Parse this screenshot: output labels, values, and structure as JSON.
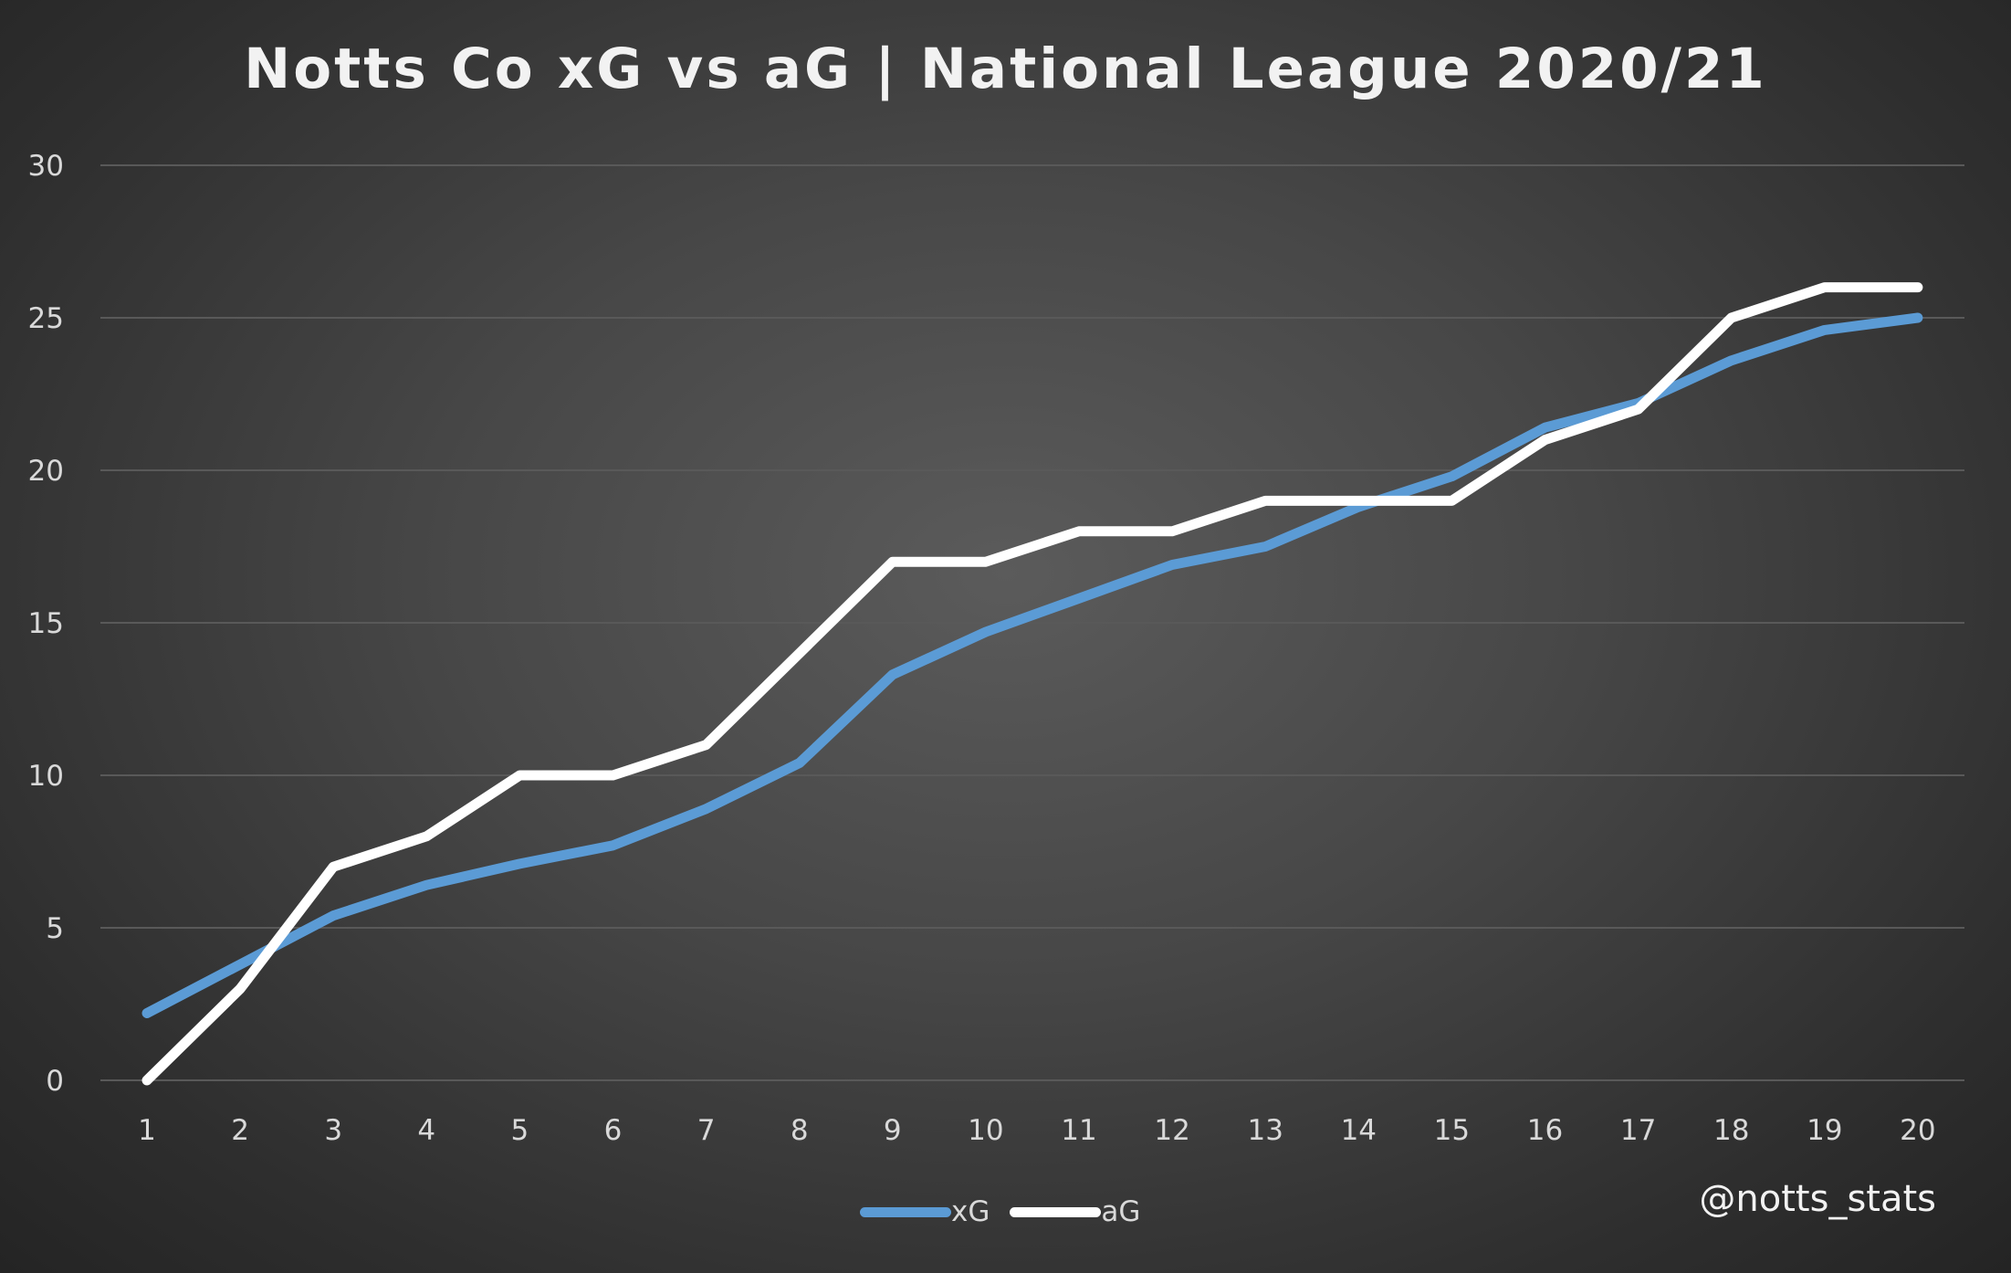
{
  "chart_data": {
    "type": "line",
    "title": "Notts Co xG vs aG | National League 2020/21",
    "xlabel": "",
    "ylabel": "",
    "x": [
      1,
      2,
      3,
      4,
      5,
      6,
      7,
      8,
      9,
      10,
      11,
      12,
      13,
      14,
      15,
      16,
      17,
      18,
      19,
      20
    ],
    "x_tick_labels": [
      "1",
      "2",
      "3",
      "4",
      "5",
      "6",
      "7",
      "8",
      "9",
      "10",
      "11",
      "12",
      "13",
      "14",
      "15",
      "16",
      "17",
      "18",
      "19",
      "20"
    ],
    "ylim": [
      0,
      30
    ],
    "y_ticks": [
      0,
      5,
      10,
      15,
      20,
      25,
      30
    ],
    "grid": true,
    "legend_position": "bottom",
    "series": [
      {
        "name": "xG",
        "color": "#5b9bd5",
        "values": [
          2.2,
          3.8,
          5.4,
          6.4,
          7.1,
          7.7,
          8.9,
          10.4,
          13.3,
          14.7,
          15.8,
          16.9,
          17.5,
          18.8,
          19.8,
          21.4,
          22.2,
          23.6,
          24.6,
          25.0
        ]
      },
      {
        "name": "aG",
        "color": "#ffffff",
        "values": [
          0,
          3,
          7,
          8,
          10,
          10,
          11,
          14,
          17,
          17,
          18,
          18,
          19,
          19,
          19,
          21,
          22,
          25,
          26,
          26
        ]
      }
    ]
  },
  "credit": "@notts_stats",
  "colors": {
    "gridline": "#595959",
    "text": "#d9d9d9"
  }
}
